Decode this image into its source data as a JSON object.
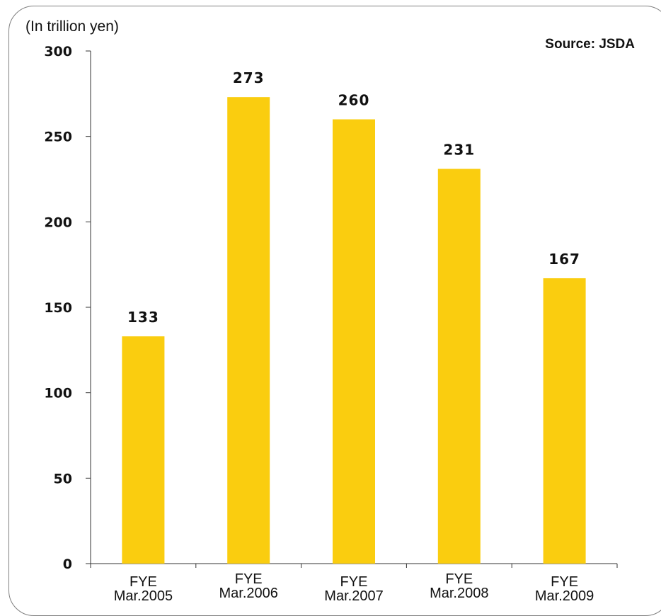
{
  "chart_data": {
    "type": "bar",
    "title": "",
    "unit_label": "(In trillion yen)",
    "source": "Source: JSDA",
    "categories": [
      [
        "FYE",
        "Mar.2005"
      ],
      [
        "FYE",
        "Mar.2006"
      ],
      [
        "FYE",
        "Mar.2007"
      ],
      [
        "FYE",
        "Mar.2008"
      ],
      [
        "FYE",
        "Mar.2009"
      ]
    ],
    "values": [
      133,
      273,
      260,
      231,
      167
    ],
    "ylim": [
      0,
      300
    ],
    "yticks": [
      0,
      50,
      100,
      150,
      200,
      250,
      300
    ],
    "bar_color": "#FACD0F",
    "grid": false,
    "legend": "none"
  }
}
